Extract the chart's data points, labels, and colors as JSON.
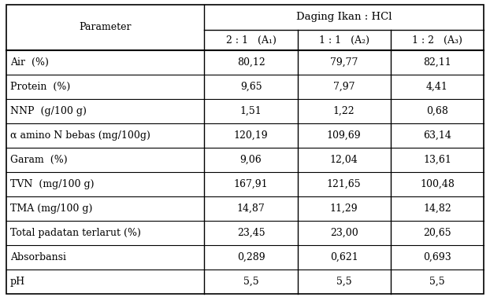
{
  "title_main": "Daging Ikan : HCl",
  "col_header_left": "Parameter",
  "col_headers": [
    "2 : 1   (A₁)",
    "1 : 1   (A₂)",
    "1 : 2   (A₃)"
  ],
  "row_labels": [
    "Air  (%)",
    "Protein  (%)",
    "NNP  (g/100 g)",
    "α amino N bebas (mg/100g)",
    "Garam  (%)",
    "TVN  (mg/100 g)",
    "TMA (mg/100 g)",
    "Total padatan terlarut (%)",
    "Absorbansi",
    "pH"
  ],
  "data": [
    [
      "80,12",
      "79,77",
      "82,11"
    ],
    [
      "9,65",
      "7,97",
      "4,41"
    ],
    [
      "1,51",
      "1,22",
      "0,68"
    ],
    [
      "120,19",
      "109,69",
      "63,14"
    ],
    [
      "9,06",
      "12,04",
      "13,61"
    ],
    [
      "167,91",
      "121,65",
      "100,48"
    ],
    [
      "14,87",
      "11,29",
      "14,82"
    ],
    [
      "23,45",
      "23,00",
      "20,65"
    ],
    [
      "0,289",
      "0,621",
      "0,693"
    ],
    [
      "5,5",
      "5,5",
      "5,5"
    ]
  ],
  "bg_color": "#ffffff",
  "line_color": "#000000",
  "text_color": "#000000",
  "font_size": 9.0,
  "fig_width": 6.22,
  "fig_height": 3.78,
  "dpi": 100
}
